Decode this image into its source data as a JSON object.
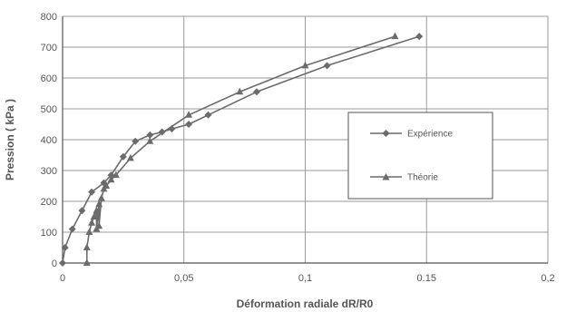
{
  "chart_data": {
    "type": "line",
    "title": "",
    "xlabel": "Déformation radiale dR/R0",
    "ylabel": "Pression ( kPa )",
    "xlim": [
      0,
      0.2
    ],
    "ylim": [
      0,
      800
    ],
    "x_ticks": [
      0,
      0.05,
      0.1,
      0.15,
      0.2
    ],
    "x_tick_labels": [
      "0",
      "0,05",
      "0,1",
      "0.15",
      "0,2"
    ],
    "y_ticks": [
      0,
      100,
      200,
      300,
      400,
      500,
      600,
      700,
      800
    ],
    "y_tick_labels": [
      "0",
      "100",
      "200",
      "300",
      "400",
      "500",
      "600",
      "700",
      "800"
    ],
    "grid": true,
    "legend_placement": "center-right",
    "series": [
      {
        "name": "Expérience",
        "marker": "diamond",
        "color": "#6b6b6b",
        "x": [
          0,
          0.001,
          0.004,
          0.008,
          0.012,
          0.017,
          0.02,
          0.025,
          0.03,
          0.036,
          0.041,
          0.045,
          0.052,
          0.06,
          0.08,
          0.109,
          0.147
        ],
        "y": [
          0,
          50,
          110,
          170,
          230,
          260,
          285,
          345,
          395,
          415,
          425,
          435,
          450,
          480,
          555,
          640,
          735
        ]
      },
      {
        "name": "Théorie",
        "marker": "triangle",
        "color": "#6b6b6b",
        "x": [
          0.01,
          0.01,
          0.011,
          0.012,
          0.013,
          0.014,
          0.014,
          0.015,
          0.015,
          0.016,
          0.017,
          0.018,
          0.02,
          0.022,
          0.028,
          0.036,
          0.052,
          0.073,
          0.1,
          0.137
        ],
        "y": [
          0,
          50,
          100,
          130,
          150,
          170,
          110,
          190,
          120,
          210,
          240,
          250,
          270,
          285,
          340,
          395,
          480,
          555,
          640,
          735
        ]
      }
    ]
  }
}
